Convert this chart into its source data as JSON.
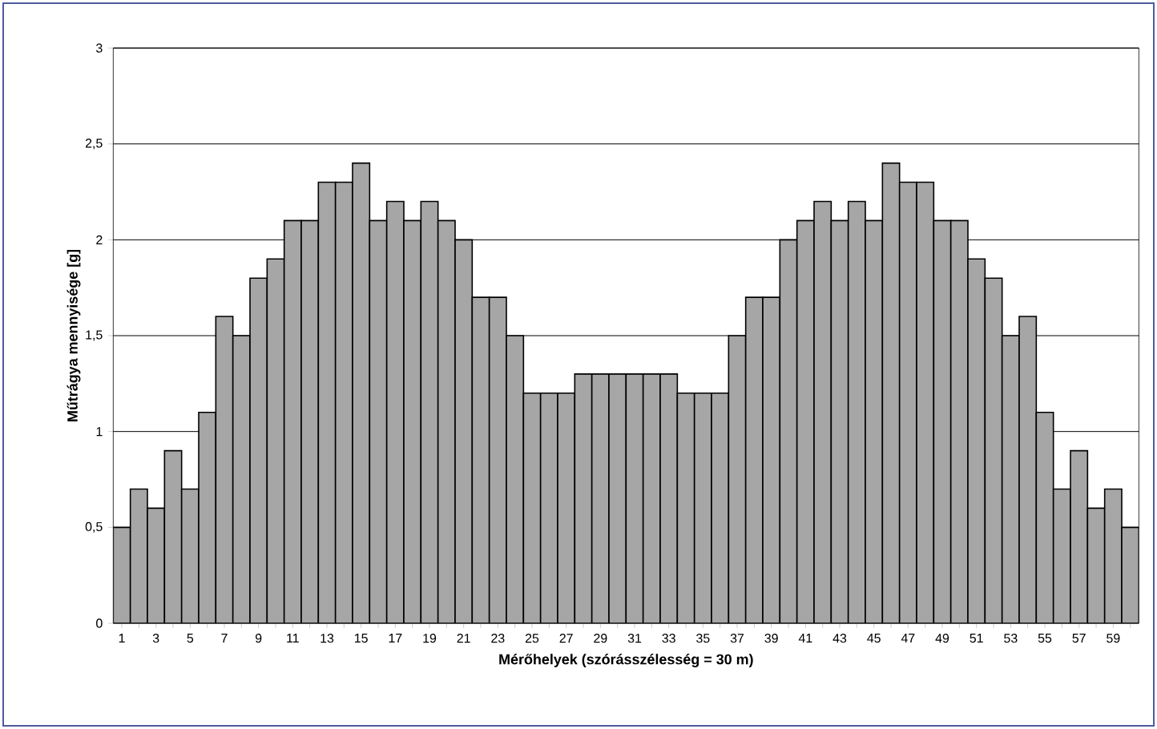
{
  "chart_data": {
    "type": "bar",
    "xlabel": "Mérőhelyek (szórásszélesség =  30 m)",
    "ylabel": "Műtrágya mennyisége [g]",
    "categories": [
      "1",
      null,
      "3",
      null,
      "5",
      null,
      "7",
      null,
      "9",
      null,
      "11",
      null,
      "13",
      null,
      "15",
      null,
      "17",
      null,
      "19",
      null,
      "21",
      null,
      "23",
      null,
      "25",
      null,
      "27",
      null,
      "29",
      null,
      "31",
      null,
      "33",
      null,
      "35",
      null,
      "37",
      null,
      "39",
      null,
      "41",
      null,
      "43",
      null,
      "45",
      null,
      "47",
      null,
      "49",
      null,
      "51",
      null,
      "53",
      null,
      "55",
      null,
      "57",
      null,
      "59",
      null
    ],
    "values": [
      0.5,
      0.7,
      0.6,
      0.9,
      0.7,
      1.1,
      1.6,
      1.5,
      1.8,
      1.9,
      2.1,
      2.1,
      2.3,
      2.3,
      2.4,
      2.1,
      2.2,
      2.1,
      2.2,
      2.1,
      2.0,
      1.7,
      1.7,
      1.5,
      1.2,
      1.2,
      1.2,
      1.3,
      1.3,
      1.3,
      1.3,
      1.3,
      1.3,
      1.2,
      1.2,
      1.2,
      1.5,
      1.7,
      1.7,
      2.0,
      2.1,
      2.2,
      2.1,
      2.2,
      2.1,
      2.4,
      2.3,
      2.3,
      2.1,
      2.1,
      1.9,
      1.8,
      1.5,
      1.6,
      1.1,
      0.7,
      0.9,
      0.6,
      0.7,
      0.5
    ],
    "color": "#a6a6a6",
    "ylim": [
      0,
      3
    ],
    "yticks": [
      0,
      {
        "value": 0.5,
        "label": "0,5"
      },
      1,
      {
        "value": 1.5,
        "label": "1,5"
      },
      2,
      {
        "value": 2.5,
        "label": "2,5"
      },
      3
    ],
    "grid": "y"
  }
}
